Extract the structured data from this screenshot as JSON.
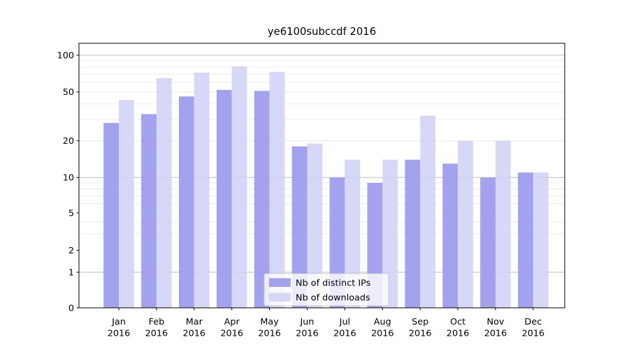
{
  "title": "ye6100subccdf 2016",
  "chart_data": {
    "type": "bar",
    "title": "ye6100subccdf 2016",
    "categories": [
      "Jan",
      "Feb",
      "Mar",
      "Apr",
      "May",
      "Jun",
      "Jul",
      "Aug",
      "Sep",
      "Oct",
      "Nov",
      "Dec"
    ],
    "x_tick_year": "2016",
    "series": [
      {
        "name": "Nb of distinct IPs",
        "color": "#9898ec",
        "fill_opacity": 0.9,
        "values": [
          28,
          33,
          46,
          52,
          51,
          18,
          10,
          9,
          14,
          13,
          10,
          11
        ]
      },
      {
        "name": "Nb of downloads",
        "color": "#d0d0f6",
        "fill_opacity": 0.85,
        "values": [
          43,
          65,
          72,
          81,
          73,
          19,
          14,
          14,
          32,
          20,
          20,
          11
        ]
      }
    ],
    "y_ticks": [
      0,
      1,
      2,
      5,
      10,
      20,
      50,
      100
    ],
    "y_scale": "symlog",
    "ylim": [
      0,
      125
    ],
    "grid": {
      "minor_values": [
        3,
        4,
        6,
        7,
        8,
        9,
        20,
        30,
        40,
        50,
        60,
        70,
        80,
        90
      ],
      "major_values": [
        1,
        10,
        100
      ],
      "minor_color": "#ececec",
      "major_color": "#bdbdbd"
    },
    "legend": {
      "position": "lower center",
      "labels": [
        "Nb of distinct IPs",
        "Nb of downloads"
      ]
    },
    "axis_color": "#000000",
    "background": "#ffffff"
  }
}
